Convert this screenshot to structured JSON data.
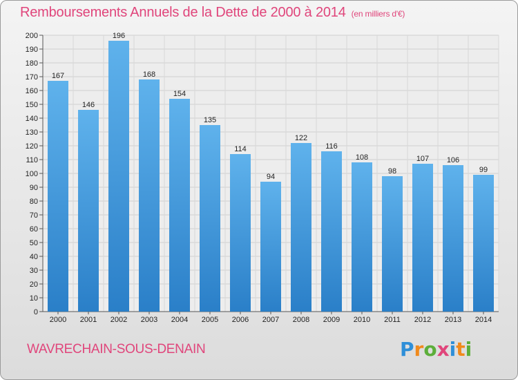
{
  "chart_data": {
    "type": "bar",
    "title": "Remboursements Annuels de la Dette de 2000 à 2014",
    "unit": "(en milliers d'€)",
    "categories": [
      "2000",
      "2001",
      "2002",
      "2003",
      "2004",
      "2005",
      "2006",
      "2007",
      "2008",
      "2009",
      "2010",
      "2011",
      "2012",
      "2013",
      "2014"
    ],
    "values": [
      167,
      146,
      196,
      168,
      154,
      135,
      114,
      94,
      122,
      116,
      108,
      98,
      107,
      106,
      99
    ],
    "ylim": [
      0,
      200
    ],
    "ytick_step": 10,
    "grid": true,
    "bar_color": "#3f97dd"
  },
  "footer": {
    "commune": "WAVRECHAIN-SOUS-DENAIN",
    "brand": "Proxiti"
  }
}
